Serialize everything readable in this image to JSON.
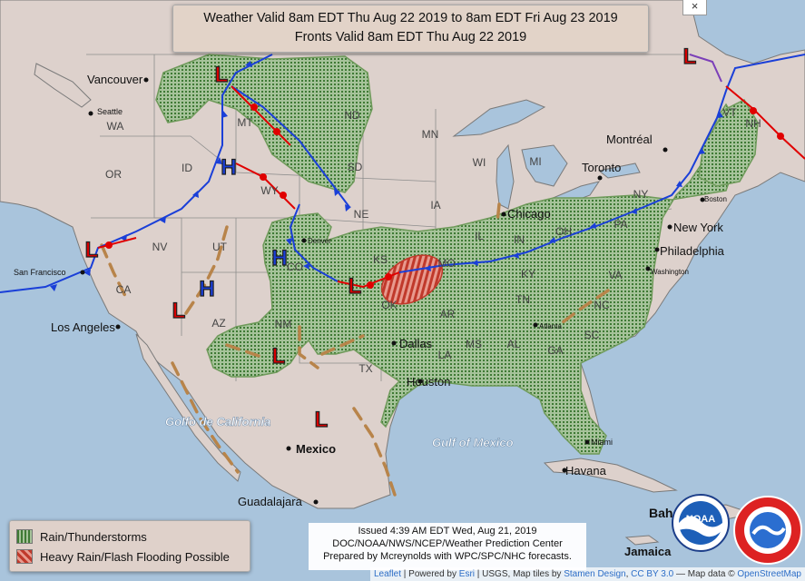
{
  "title": {
    "line1": "Weather Valid 8am EDT Thu Aug 22 2019 to 8am EDT Fri Aug 23 2019",
    "line2": "Fronts Valid 8am EDT Thu Aug 22 2019"
  },
  "close_label": "×",
  "legend": {
    "rain_label": "Rain/Thunderstorms",
    "flood_label": "Heavy Rain/Flash Flooding Possible"
  },
  "info": {
    "issued": "Issued 4:39 AM EDT Wed, Aug 21, 2019",
    "agency": "DOC/NOAA/NWS/NCEP/Weather Prediction Center",
    "prepared": "Prepared by Mcreynolds with WPC/SPC/NHC forecasts."
  },
  "attribution": {
    "leaflet": "Leaflet",
    "powered": " | Powered by ",
    "esri": "Esri",
    "rest": " | USGS, Map tiles by ",
    "stamen": "Stamen Design",
    "cc": "CC BY 3.0",
    "mapdata": " — Map data © ",
    "osm": "OpenStreetMap"
  },
  "colors": {
    "rain": "#6e9a5a",
    "flood": "#c0392b",
    "cold_front": "#1a3fd8",
    "warm_front": "#e00000",
    "trough": "#b8844a",
    "high": "#1a3fd8",
    "low": "#d80000"
  },
  "map": {
    "pressure_centers": [
      {
        "type": "L",
        "label": "L"
      },
      {
        "type": "L",
        "label": "L"
      },
      {
        "type": "L",
        "label": "L"
      },
      {
        "type": "L",
        "label": "L"
      },
      {
        "type": "L",
        "label": "L"
      },
      {
        "type": "L",
        "label": "L"
      },
      {
        "type": "L",
        "label": "L"
      },
      {
        "type": "H",
        "label": "H"
      },
      {
        "type": "H",
        "label": "H"
      },
      {
        "type": "H",
        "label": "H"
      }
    ],
    "cities": [
      "Vancouver",
      "Seattle",
      "San Francisco",
      "Los Angeles",
      "Denver",
      "Dallas",
      "Houston",
      "Chicago",
      "Toronto",
      "Montréal",
      "Boston",
      "New York",
      "Philadelphia",
      "Washington",
      "Atlanta",
      "Miami",
      "Havana",
      "Jamaica",
      "Mexico",
      "Guadalajara"
    ],
    "states": [
      "WA",
      "OR",
      "ID",
      "MT",
      "ND",
      "SD",
      "WY",
      "NE",
      "NV",
      "UT",
      "CO",
      "KS",
      "MO",
      "IA",
      "MN",
      "WI",
      "MI",
      "IL",
      "IN",
      "OH",
      "KY",
      "TN",
      "CA",
      "AZ",
      "NM",
      "OK",
      "AR",
      "TX",
      "LA",
      "MS",
      "AL",
      "GA",
      "SC",
      "NC",
      "VA",
      "PA",
      "NY",
      "VT",
      "NH"
    ],
    "water": [
      "Golfo de California",
      "Gulf of Mexico",
      "Baha"
    ]
  }
}
